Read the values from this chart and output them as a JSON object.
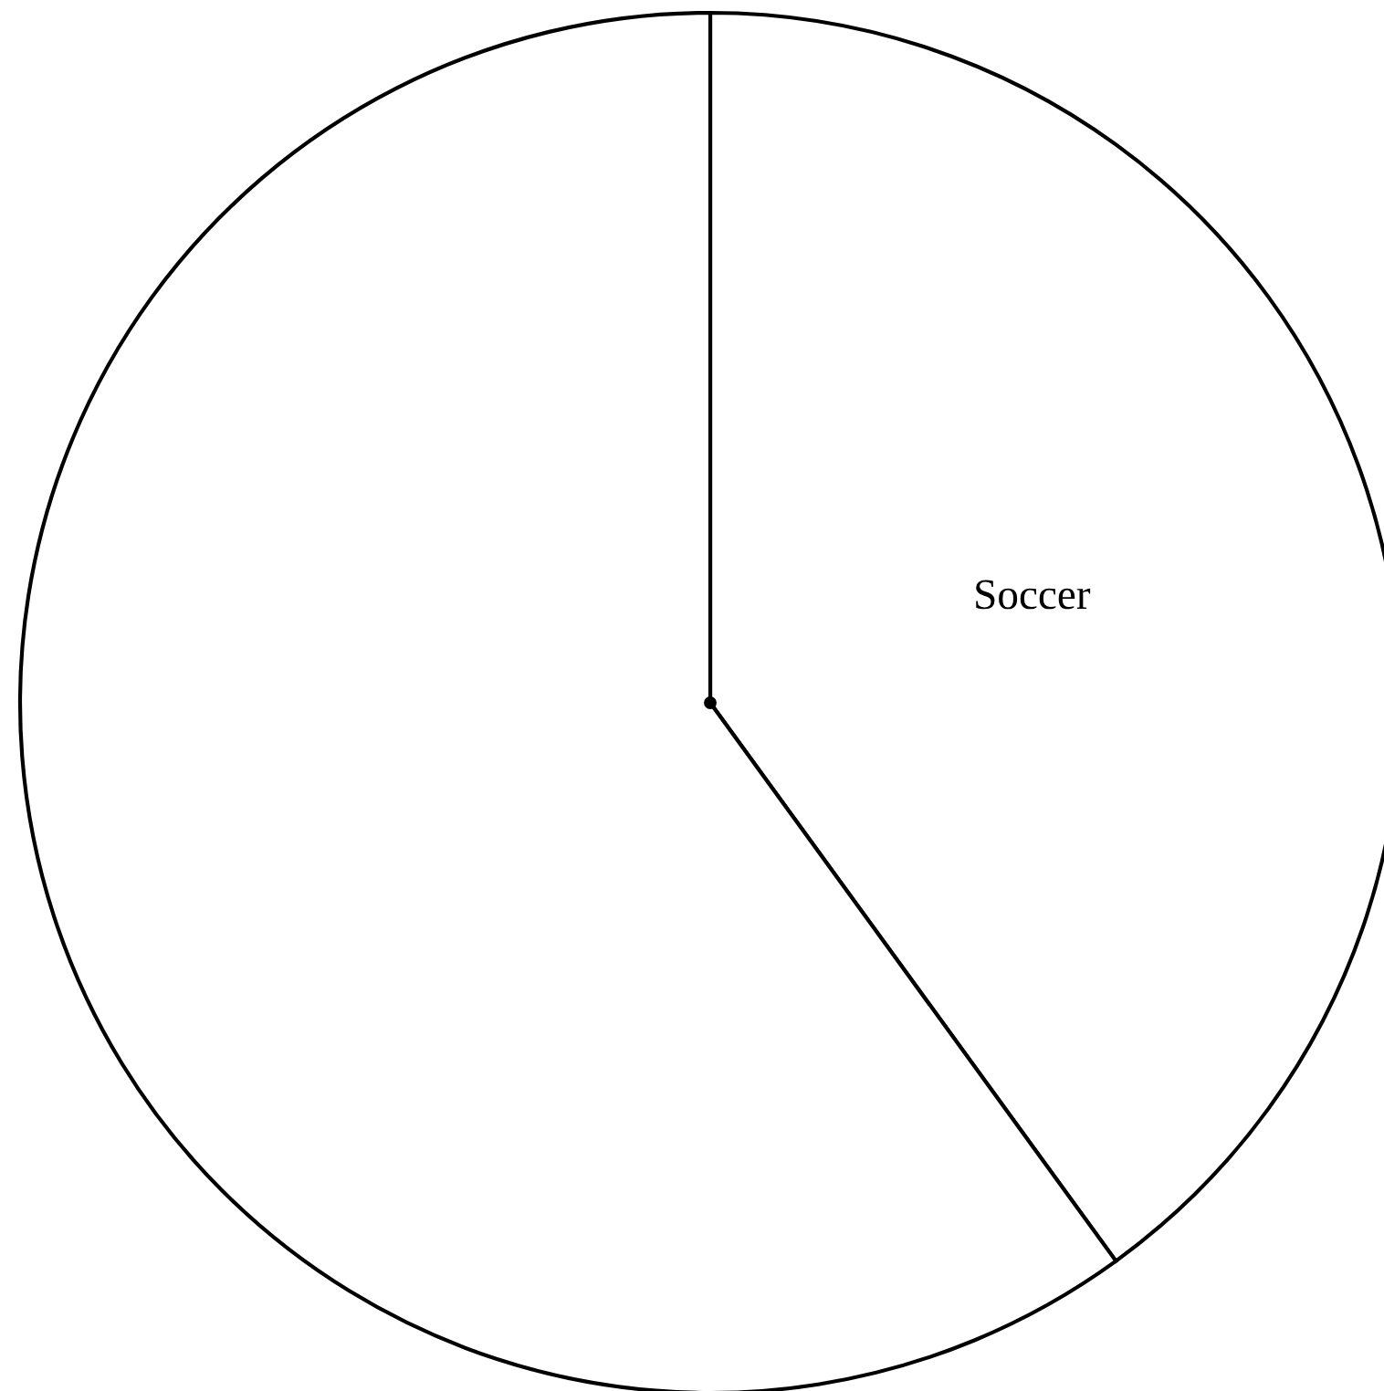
{
  "chart_data": {
    "type": "pie",
    "categories": [
      "Soccer",
      null
    ],
    "values": [
      40,
      60
    ],
    "colors": [
      "#ffffff",
      "#ffffff"
    ]
  }
}
